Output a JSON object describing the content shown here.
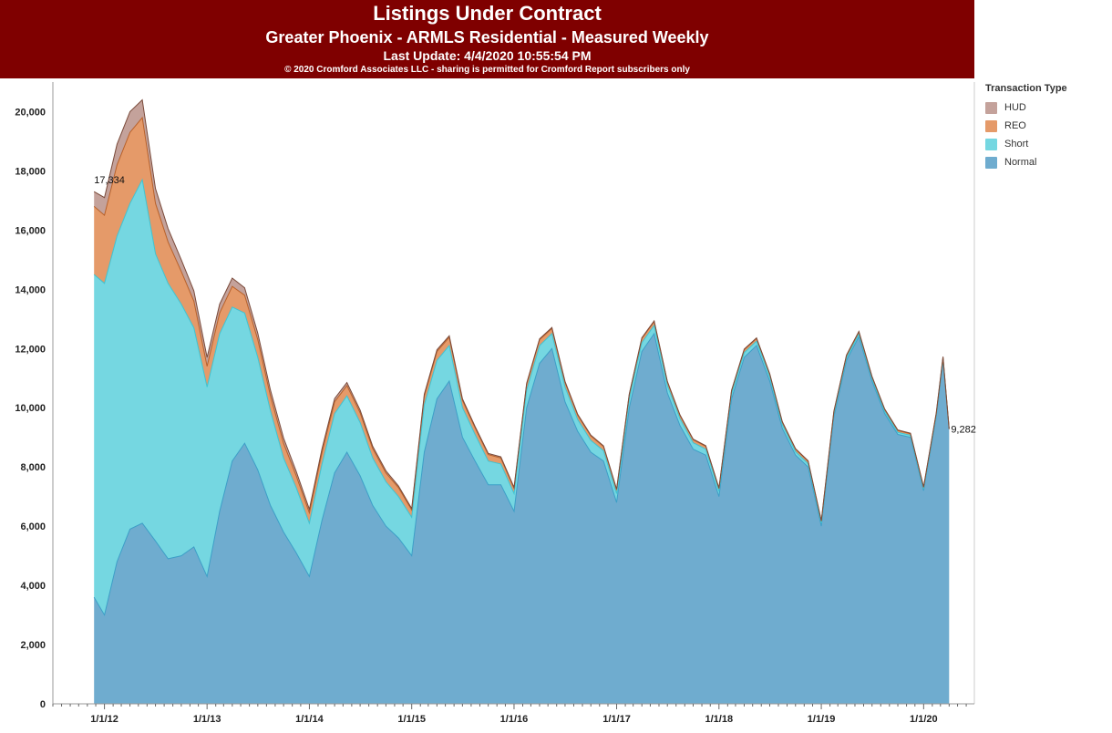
{
  "header": {
    "title": "Listings Under Contract",
    "subtitle": "Greater Phoenix - ARMLS Residential - Measured Weekly",
    "update": "Last Update: 4/4/2020 10:55:54 PM",
    "copyright": "© 2020 Cromford Associates LLC - sharing is permitted for Cromford Report subscribers only"
  },
  "legend": {
    "title": "Transaction Type",
    "items": [
      {
        "label": "HUD",
        "color": "#c4a29b"
      },
      {
        "label": "REO",
        "color": "#e59a69"
      },
      {
        "label": "Short",
        "color": "#75d7e1"
      },
      {
        "label": "Normal",
        "color": "#6faccf"
      }
    ]
  },
  "chart_data": {
    "type": "area",
    "stacked": true,
    "title": "Listings Under Contract",
    "x_tick_labels": [
      "1/1/12",
      "1/1/13",
      "1/1/14",
      "1/1/15",
      "1/1/16",
      "1/1/17",
      "1/1/18",
      "1/1/19",
      "1/1/20"
    ],
    "y_ticks": [
      0,
      2000,
      4000,
      6000,
      8000,
      10000,
      12000,
      14000,
      16000,
      18000,
      20000
    ],
    "y_tick_labels": [
      "0",
      "2,000",
      "4,000",
      "6,000",
      "8,000",
      "10,000",
      "12,000",
      "14,000",
      "16,000",
      "18,000",
      "20,000"
    ],
    "ylim": [
      0,
      21000
    ],
    "xlim": [
      "2011-07-01",
      "2020-06-30"
    ],
    "grid": false,
    "legend_position": "right",
    "x": [
      "2011-11-25",
      "2012-01-01",
      "2012-02-15",
      "2012-04-01",
      "2012-05-15",
      "2012-07-01",
      "2012-08-15",
      "2012-10-01",
      "2012-11-15",
      "2013-01-01",
      "2013-02-15",
      "2013-04-01",
      "2013-05-15",
      "2013-07-01",
      "2013-08-15",
      "2013-10-01",
      "2013-11-15",
      "2014-01-01",
      "2014-02-15",
      "2014-04-01",
      "2014-05-15",
      "2014-07-01",
      "2014-08-15",
      "2014-10-01",
      "2014-11-15",
      "2015-01-01",
      "2015-02-15",
      "2015-04-01",
      "2015-05-15",
      "2015-07-01",
      "2015-08-15",
      "2015-10-01",
      "2015-11-15",
      "2016-01-01",
      "2016-02-15",
      "2016-04-01",
      "2016-05-15",
      "2016-07-01",
      "2016-08-15",
      "2016-10-01",
      "2016-11-15",
      "2017-01-01",
      "2017-02-15",
      "2017-04-01",
      "2017-05-15",
      "2017-07-01",
      "2017-08-15",
      "2017-10-01",
      "2017-11-15",
      "2018-01-01",
      "2018-02-15",
      "2018-04-01",
      "2018-05-15",
      "2018-07-01",
      "2018-08-15",
      "2018-10-01",
      "2018-11-15",
      "2019-01-01",
      "2019-02-15",
      "2019-04-01",
      "2019-05-15",
      "2019-07-01",
      "2019-08-15",
      "2019-10-01",
      "2019-11-15",
      "2020-01-01",
      "2020-02-15",
      "2020-03-10",
      "2020-04-01"
    ],
    "series": [
      {
        "name": "Normal",
        "values": [
          3600,
          3000,
          4800,
          5900,
          6100,
          5500,
          4900,
          5000,
          5300,
          4300,
          6500,
          8200,
          8800,
          7900,
          6700,
          5800,
          5100,
          4300,
          6200,
          7800,
          8500,
          7700,
          6700,
          6000,
          5600,
          5000,
          8500,
          10300,
          10900,
          9000,
          8200,
          7400,
          7400,
          6500,
          10000,
          11500,
          12000,
          10200,
          9200,
          8500,
          8200,
          6800,
          10000,
          11900,
          12500,
          10500,
          9400,
          8600,
          8400,
          7000,
          10300,
          11700,
          12100,
          10900,
          9300,
          8400,
          8000,
          6000,
          9700,
          11600,
          12400,
          10900,
          9800,
          9100,
          9000,
          7200,
          9700,
          11600,
          9282
        ]
      },
      {
        "name": "Short",
        "values": [
          10900,
          11200,
          11000,
          11000,
          11600,
          9700,
          9300,
          8500,
          7400,
          6400,
          6000,
          5200,
          4400,
          3800,
          3200,
          2500,
          2200,
          1800,
          1900,
          2000,
          1900,
          1800,
          1600,
          1500,
          1400,
          1300,
          1600,
          1300,
          1200,
          1000,
          900,
          800,
          700,
          600,
          600,
          600,
          500,
          500,
          400,
          400,
          350,
          300,
          300,
          300,
          280,
          250,
          230,
          220,
          200,
          180,
          170,
          160,
          150,
          140,
          130,
          120,
          110,
          100,
          100,
          90,
          90,
          80,
          80,
          70,
          70,
          60,
          60,
          55,
          0
        ]
      },
      {
        "name": "REO",
        "values": [
          2300,
          2300,
          2400,
          2400,
          2100,
          1700,
          1400,
          1100,
          900,
          700,
          700,
          700,
          600,
          600,
          500,
          500,
          400,
          350,
          400,
          400,
          350,
          330,
          320,
          300,
          300,
          250,
          300,
          300,
          280,
          250,
          230,
          220,
          200,
          180,
          200,
          200,
          180,
          160,
          150,
          150,
          140,
          130,
          140,
          140,
          130,
          120,
          110,
          100,
          100,
          90,
          100,
          100,
          90,
          90,
          80,
          80,
          80,
          70,
          70,
          70,
          70,
          60,
          60,
          60,
          50,
          50,
          50,
          50,
          0
        ]
      },
      {
        "name": "HUD",
        "values": [
          500,
          600,
          700,
          700,
          600,
          500,
          450,
          400,
          350,
          300,
          300,
          280,
          250,
          220,
          200,
          180,
          150,
          120,
          120,
          110,
          100,
          90,
          80,
          70,
          60,
          50,
          60,
          60,
          50,
          50,
          40,
          40,
          40,
          30,
          30,
          30,
          30,
          30,
          30,
          25,
          25,
          25,
          25,
          25,
          25,
          20,
          20,
          20,
          20,
          20,
          20,
          20,
          20,
          20,
          20,
          20,
          20,
          20,
          20,
          20,
          20,
          20,
          20,
          20,
          20,
          20,
          20,
          20,
          0
        ]
      }
    ],
    "annotations": [
      {
        "text": "17,334",
        "x": "2011-11-25",
        "y": 17334
      },
      {
        "text": "9,282",
        "x": "2020-04-01",
        "y": 9282
      }
    ]
  }
}
